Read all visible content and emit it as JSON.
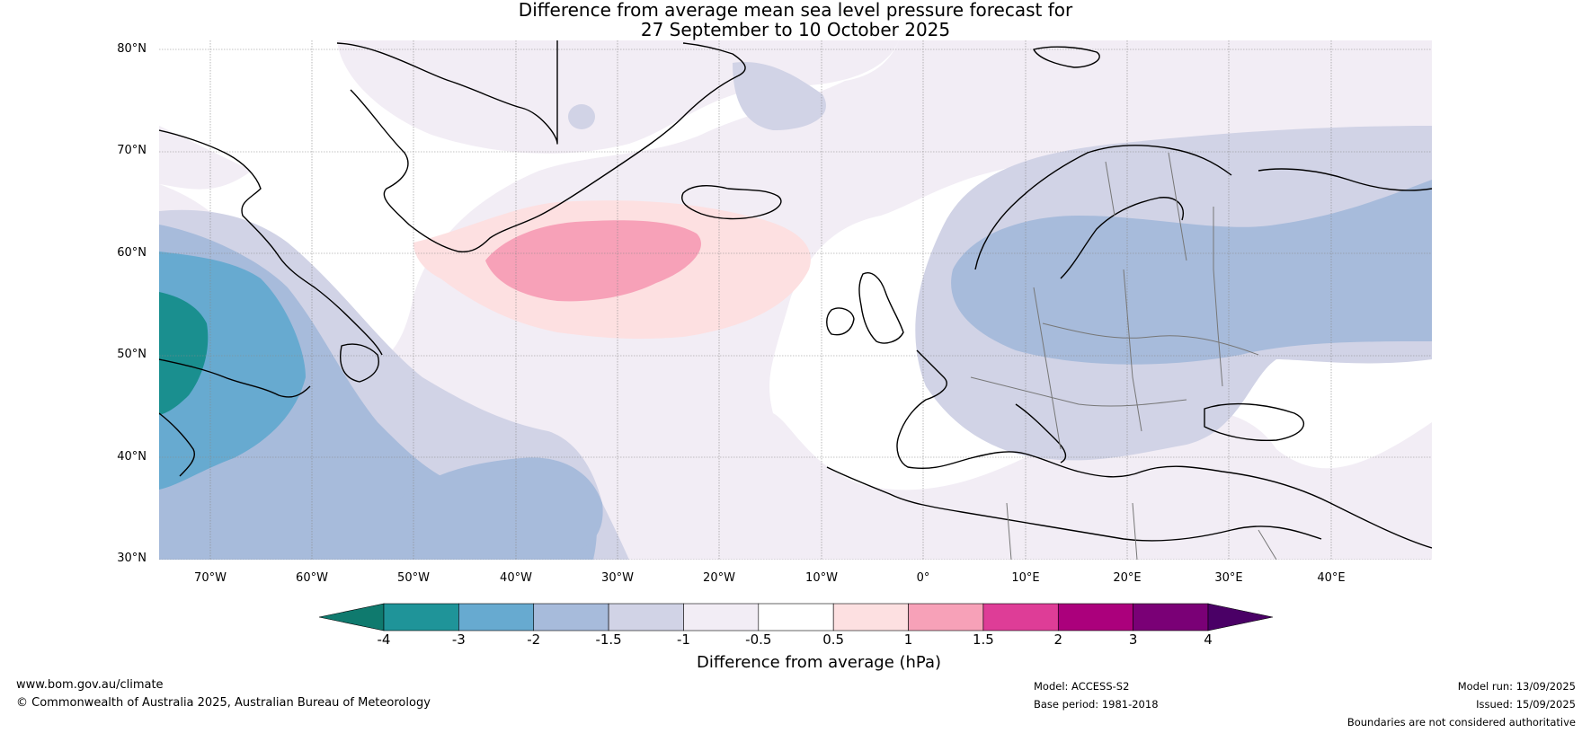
{
  "title": {
    "line1": "Difference from average mean sea level pressure forecast for",
    "line2": "27 September to 10 October 2025"
  },
  "axes": {
    "lat_labels": [
      "80°N",
      "70°N",
      "60°N",
      "50°N",
      "40°N",
      "30°N"
    ],
    "lon_labels": [
      "70°W",
      "60°W",
      "50°W",
      "40°W",
      "30°W",
      "20°W",
      "10°W",
      "0°",
      "10°E",
      "20°E",
      "30°E",
      "40°E"
    ]
  },
  "colorbar": {
    "ticks": [
      "-4",
      "-3",
      "-2",
      "-1.5",
      "-1",
      "-0.5",
      "0.5",
      "1",
      "1.5",
      "2",
      "3",
      "4"
    ],
    "colors": [
      "#0f7a6e",
      "#1f9499",
      "#67aad0",
      "#a7bbdb",
      "#d1d3e6",
      "#f2edf5",
      "#ffffff",
      "#fde0e1",
      "#f7a1b8",
      "#de3d97",
      "#ab007c",
      "#7a0076",
      "#4a0066"
    ],
    "label": "Difference from average (hPa)"
  },
  "footer": {
    "website": "www.bom.gov.au/climate",
    "copyright": "© Commonwealth of Australia 2025, Australian Bureau of Meteorology",
    "model": "Model: ACCESS-S2",
    "base_period": "Base period: 1981-2018",
    "model_run": "Model run: 13/09/2025",
    "issued": "Issued: 15/09/2025",
    "disclaimer": "Boundaries are not considered authoritative"
  },
  "map": {
    "extent": {
      "lon_min": -75,
      "lon_max": 50,
      "lat_min": 30,
      "lat_max": 81
    },
    "gridlines": true,
    "field_colors": {
      "neg4": "#1a8f8f",
      "neg3": "#67aad0",
      "neg2": "#a7bbdb",
      "neg15": "#d1d3e6",
      "neg1": "#f2edf5",
      "pos05": "#fde0e1",
      "pos1": "#f7a1b8",
      "coast": "#000000",
      "borders": "#777777"
    }
  }
}
